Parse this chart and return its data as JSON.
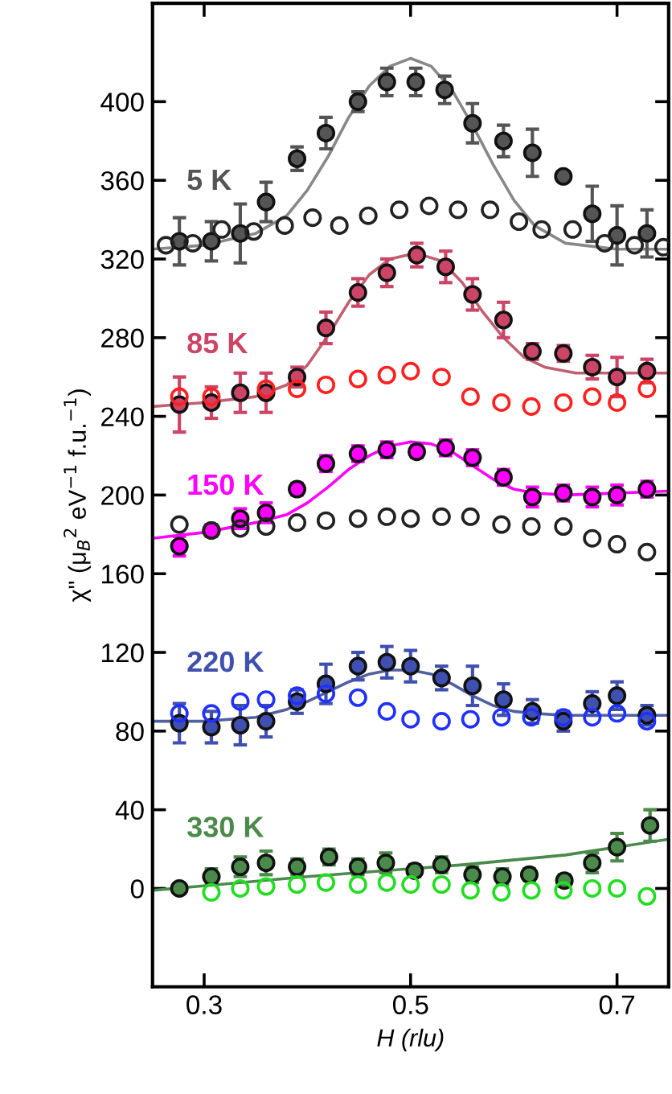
{
  "chart_data": {
    "type": "scatter",
    "xlabel": "H (rlu)",
    "ylabel": "χ\" (μ$_{B}$$^{2}$ eV$^{−1}$ f.u.$^{−1}$)",
    "xlim": [
      0.25,
      0.75
    ],
    "xticks": [
      0.3,
      0.5,
      0.7
    ],
    "ylim": [
      -50,
      450
    ],
    "yticks": [
      0,
      40,
      80,
      120,
      160,
      200,
      240,
      280,
      320,
      360,
      400
    ],
    "grid": false,
    "legend": false,
    "marker": "circle",
    "series": [
      {
        "name": "5 K",
        "color": "#555555",
        "x": [
          0.276,
          0.307,
          0.335,
          0.36,
          0.39,
          0.418,
          0.449,
          0.477,
          0.505,
          0.533,
          0.56,
          0.59,
          0.618,
          0.648,
          0.676,
          0.7,
          0.729
        ],
        "values": [
          329,
          329,
          333,
          349,
          371,
          384,
          400,
          410,
          410,
          406,
          389,
          380,
          374,
          362,
          343,
          332,
          333
        ],
        "errors": [
          12,
          10,
          15,
          10,
          6,
          8,
          5,
          7,
          7,
          7,
          10,
          8,
          12,
          2,
          14,
          15,
          12
        ]
      },
      {
        "color": "#222222",
        "x": [
          0.263,
          0.289,
          0.317,
          0.348,
          0.378,
          0.405,
          0.431,
          0.459,
          0.489,
          0.518,
          0.546,
          0.577,
          0.605,
          0.627,
          0.657,
          0.688,
          0.717,
          0.745
        ],
        "values": [
          327,
          328,
          335,
          334,
          337,
          341,
          337,
          342,
          345,
          347,
          345,
          345,
          339,
          335,
          335,
          328,
          327,
          326
        ]
      },
      {
        "type": "line",
        "marker": "none",
        "color": "#888888",
        "x": [
          0.25,
          0.3,
          0.35,
          0.38,
          0.4,
          0.42,
          0.44,
          0.46,
          0.48,
          0.5,
          0.52,
          0.54,
          0.56,
          0.58,
          0.6,
          0.62,
          0.65,
          0.7,
          0.75
        ],
        "values": [
          325,
          327,
          333,
          342,
          355,
          372,
          392,
          408,
          418,
          422,
          418,
          406,
          388,
          368,
          350,
          337,
          328,
          325,
          325
        ]
      },
      {
        "name": "85 K",
        "color": "#cc4466",
        "x": [
          0.276,
          0.307,
          0.335,
          0.36,
          0.39,
          0.418,
          0.449,
          0.477,
          0.506,
          0.534,
          0.56,
          0.59,
          0.618,
          0.648,
          0.676,
          0.7,
          0.729
        ],
        "values": [
          246,
          247,
          252,
          252,
          260,
          285,
          303,
          313,
          322,
          316,
          302,
          289,
          273,
          272,
          265,
          260,
          263
        ],
        "errors": [
          14,
          8,
          10,
          10,
          5,
          8,
          7,
          7,
          6,
          8,
          8,
          9,
          4,
          4,
          6,
          10,
          6
        ]
      },
      {
        "color": "#ff2020",
        "x": [
          0.276,
          0.307,
          0.36,
          0.39,
          0.418,
          0.449,
          0.477,
          0.5,
          0.53,
          0.558,
          0.588,
          0.617,
          0.648,
          0.676,
          0.7,
          0.729
        ],
        "values": [
          250,
          250,
          254,
          254,
          256,
          259,
          261,
          263,
          260,
          250,
          247,
          245,
          247,
          250,
          247,
          254
        ]
      },
      {
        "type": "line",
        "marker": "none",
        "color": "#c06070",
        "x": [
          0.25,
          0.3,
          0.35,
          0.38,
          0.4,
          0.42,
          0.44,
          0.46,
          0.48,
          0.505,
          0.53,
          0.55,
          0.57,
          0.59,
          0.61,
          0.63,
          0.66,
          0.7,
          0.75
        ],
        "values": [
          245,
          247,
          250,
          256,
          266,
          281,
          298,
          312,
          320,
          323,
          319,
          308,
          293,
          280,
          270,
          265,
          262,
          262,
          262
        ]
      },
      {
        "name": "150 K",
        "color": "#ff00ff",
        "x": [
          0.276,
          0.307,
          0.335,
          0.36,
          0.39,
          0.418,
          0.449,
          0.477,
          0.506,
          0.534,
          0.56,
          0.59,
          0.618,
          0.648,
          0.676,
          0.7,
          0.729
        ],
        "values": [
          174,
          182,
          188,
          191,
          203,
          216,
          221,
          223,
          222,
          224,
          219,
          209,
          199,
          201,
          199,
          200,
          203
        ],
        "errors": [
          5,
          3,
          5,
          5,
          3,
          4,
          4,
          4,
          3,
          4,
          4,
          4,
          5,
          4,
          5,
          5,
          4
        ]
      },
      {
        "color": "#222222",
        "x": [
          0.276,
          0.307,
          0.335,
          0.36,
          0.39,
          0.418,
          0.449,
          0.477,
          0.5,
          0.53,
          0.558,
          0.588,
          0.617,
          0.648,
          0.676,
          0.7,
          0.729
        ],
        "values": [
          185,
          182,
          183,
          184,
          186,
          187,
          188,
          189,
          188,
          189,
          189,
          185,
          184,
          184,
          178,
          175,
          171
        ]
      },
      {
        "type": "line",
        "marker": "none",
        "color": "#ff00ff",
        "x": [
          0.25,
          0.3,
          0.35,
          0.38,
          0.4,
          0.42,
          0.44,
          0.46,
          0.48,
          0.5,
          0.52,
          0.54,
          0.56,
          0.58,
          0.6,
          0.62,
          0.65,
          0.7,
          0.75
        ],
        "values": [
          178,
          181,
          186,
          190,
          196,
          204,
          213,
          220,
          225,
          227,
          226,
          222,
          215,
          208,
          203,
          201,
          200,
          201,
          202
        ]
      },
      {
        "name": "220 K",
        "color": "#4050b0",
        "x": [
          0.276,
          0.307,
          0.335,
          0.36,
          0.39,
          0.418,
          0.449,
          0.477,
          0.5,
          0.53,
          0.56,
          0.59,
          0.618,
          0.648,
          0.676,
          0.7,
          0.729
        ],
        "values": [
          84,
          82,
          83,
          85,
          95,
          104,
          113,
          115,
          113,
          107,
          103,
          96,
          90,
          85,
          94,
          98,
          88
        ],
        "errors": [
          10,
          8,
          10,
          8,
          6,
          10,
          7,
          8,
          8,
          6,
          10,
          8,
          6,
          5,
          6,
          7,
          5
        ]
      },
      {
        "color": "#2030ff",
        "x": [
          0.276,
          0.307,
          0.335,
          0.36,
          0.39,
          0.418,
          0.449,
          0.477,
          0.5,
          0.53,
          0.558,
          0.588,
          0.617,
          0.648,
          0.676,
          0.7,
          0.729
        ],
        "values": [
          89,
          89,
          95,
          96,
          98,
          99,
          97,
          90,
          86,
          85,
          86,
          87,
          87,
          87,
          87,
          89,
          85
        ]
      },
      {
        "type": "line",
        "marker": "none",
        "color": "#5060a0",
        "x": [
          0.25,
          0.3,
          0.35,
          0.38,
          0.4,
          0.42,
          0.44,
          0.46,
          0.48,
          0.5,
          0.52,
          0.54,
          0.56,
          0.58,
          0.6,
          0.62,
          0.65,
          0.7,
          0.75
        ],
        "values": [
          85,
          85,
          87,
          91,
          95,
          100,
          105,
          109,
          111,
          111,
          109,
          104,
          98,
          93,
          90,
          89,
          88,
          88,
          88
        ]
      },
      {
        "name": "330 K",
        "color": "#4a8a4a",
        "x": [
          0.276,
          0.307,
          0.335,
          0.36,
          0.39,
          0.421,
          0.449,
          0.476,
          0.504,
          0.53,
          0.56,
          0.589,
          0.615,
          0.649,
          0.676,
          0.7,
          0.732
        ],
        "values": [
          0,
          6,
          11,
          13,
          11,
          16,
          11,
          13,
          9,
          12,
          7,
          6,
          7,
          4,
          13,
          21,
          32
        ],
        "errors": [
          2,
          4,
          5,
          6,
          4,
          4,
          4,
          5,
          3,
          4,
          4,
          4,
          3,
          3,
          5,
          7,
          8
        ]
      },
      {
        "color": "#22dd22",
        "x": [
          0.307,
          0.335,
          0.36,
          0.39,
          0.418,
          0.449,
          0.477,
          0.5,
          0.53,
          0.558,
          0.588,
          0.617,
          0.648,
          0.676,
          0.7,
          0.729
        ],
        "values": [
          -2,
          0,
          1,
          2,
          3,
          2,
          3,
          2,
          2,
          -1,
          -2,
          -1,
          -1,
          0,
          0,
          -4
        ]
      },
      {
        "type": "line",
        "marker": "none",
        "color": "#4a8a4a",
        "x": [
          0.25,
          0.4,
          0.55,
          0.65,
          0.75
        ],
        "values": [
          -1,
          6,
          12,
          17,
          25
        ]
      }
    ]
  }
}
